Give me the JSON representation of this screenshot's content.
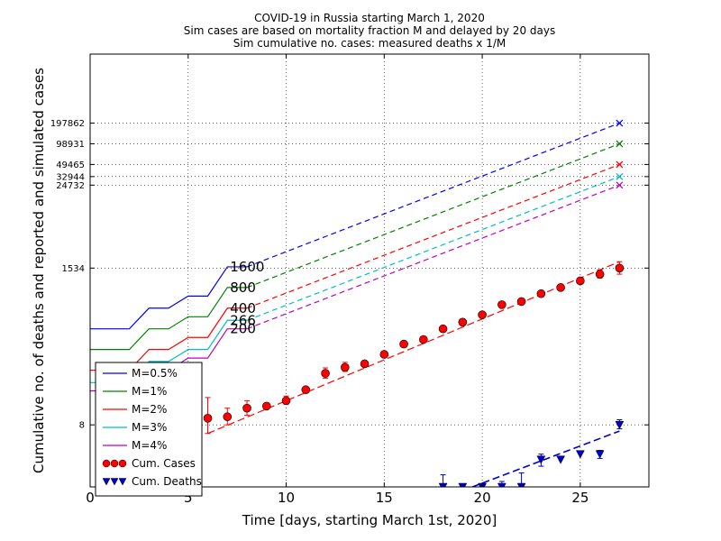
{
  "chart_data": {
    "type": "line",
    "title": [
      "COVID-19 in Russia starting March 1, 2020",
      "Sim cases are based on mortality fraction M and delayed by 20 days",
      "Sim cumulative no. cases: measured deaths x 1/M"
    ],
    "xlabel": "Time [days, starting March 1st, 2020]",
    "ylabel": "Cumulative no. of deaths and reported and simulated cases",
    "xlim": [
      0,
      28.5
    ],
    "x_ticks": [
      0,
      5,
      10,
      15,
      20,
      25
    ],
    "x_tick_labels": [
      "0",
      "5",
      "10",
      "15",
      "20",
      "25"
    ],
    "y_scale": "log",
    "ylim": [
      1,
      2000000
    ],
    "y_ticks": [
      8,
      1534,
      24732,
      32944,
      49465,
      98931,
      197862
    ],
    "y_tick_labels": [
      "8",
      "1534",
      "24732",
      "32944",
      "49465",
      "98931",
      "197862"
    ],
    "grid": true,
    "legend_position": "lower-left",
    "series": [
      {
        "name": "M=0.5%",
        "color": "#0000ff",
        "solid": {
          "x": [
            0,
            2,
            3,
            4,
            5,
            6,
            7,
            8
          ],
          "y": [
            200,
            200,
            400,
            400,
            600,
            600,
            1600,
            1600
          ]
        },
        "dashed": {
          "x": [
            8,
            27
          ],
          "y": [
            1600,
            197862
          ]
        },
        "end_x": 27,
        "end_y": 197862,
        "label": "1600",
        "label_x": 7,
        "label_y": 1600
      },
      {
        "name": "M=1%",
        "color": "#008000",
        "solid": {
          "x": [
            0,
            2,
            3,
            4,
            5,
            6,
            7,
            8
          ],
          "y": [
            100,
            100,
            200,
            200,
            300,
            300,
            800,
            800
          ]
        },
        "dashed": {
          "x": [
            8,
            27
          ],
          "y": [
            800,
            98931
          ]
        },
        "end_x": 27,
        "end_y": 98931,
        "label": "800",
        "label_x": 7,
        "label_y": 800
      },
      {
        "name": "M=2%",
        "color": "#ff0000",
        "solid": {
          "x": [
            0,
            2,
            3,
            4,
            5,
            6,
            7,
            8
          ],
          "y": [
            50,
            50,
            100,
            100,
            150,
            150,
            400,
            400
          ]
        },
        "dashed": {
          "x": [
            8,
            27
          ],
          "y": [
            400,
            49465
          ]
        },
        "end_x": 27,
        "end_y": 49465,
        "label": "400",
        "label_x": 7,
        "label_y": 400
      },
      {
        "name": "M=3%",
        "color": "#00bfbf",
        "solid": {
          "x": [
            0,
            2,
            3,
            4,
            5,
            6,
            7,
            8
          ],
          "y": [
            33,
            33,
            67,
            67,
            100,
            100,
            266,
            266
          ]
        },
        "dashed": {
          "x": [
            8,
            27
          ],
          "y": [
            266,
            32944
          ]
        },
        "end_x": 27,
        "end_y": 32944,
        "label": "266",
        "label_x": 7,
        "label_y": 266
      },
      {
        "name": "M=4%",
        "color": "#bf00bf",
        "solid": {
          "x": [
            0,
            2,
            3,
            4,
            5,
            6,
            7,
            8
          ],
          "y": [
            25,
            25,
            50,
            50,
            75,
            75,
            200,
            200
          ]
        },
        "dashed": {
          "x": [
            8,
            27
          ],
          "y": [
            200,
            24732
          ]
        },
        "end_x": 27,
        "end_y": 24732,
        "label": "200",
        "label_x": 7,
        "label_y": 200
      }
    ],
    "cases": {
      "name": "Cum. Cases",
      "color": "#ff0000",
      "points": [
        {
          "x": 6,
          "y": 10,
          "err": [
            6,
            20
          ]
        },
        {
          "x": 7,
          "y": 10.5,
          "err": [
            8,
            14
          ]
        },
        {
          "x": 8,
          "y": 14,
          "err": [
            11,
            18
          ]
        },
        {
          "x": 9,
          "y": 15
        },
        {
          "x": 10,
          "y": 18,
          "err": [
            16,
            21
          ]
        },
        {
          "x": 11,
          "y": 26
        },
        {
          "x": 12,
          "y": 45,
          "err": [
            38,
            54
          ]
        },
        {
          "x": 13,
          "y": 55,
          "err": [
            48,
            65
          ]
        },
        {
          "x": 14,
          "y": 62
        },
        {
          "x": 15,
          "y": 85
        },
        {
          "x": 16,
          "y": 120
        },
        {
          "x": 17,
          "y": 140
        },
        {
          "x": 18,
          "y": 200
        },
        {
          "x": 19,
          "y": 250
        },
        {
          "x": 20,
          "y": 320
        },
        {
          "x": 21,
          "y": 450
        },
        {
          "x": 22,
          "y": 500
        },
        {
          "x": 23,
          "y": 650
        },
        {
          "x": 24,
          "y": 800
        },
        {
          "x": 25,
          "y": 1000
        },
        {
          "x": 26,
          "y": 1250,
          "err": [
            1100,
            1450
          ]
        },
        {
          "x": 27,
          "y": 1534,
          "err": [
            1250,
            1900
          ]
        }
      ],
      "fit": {
        "x": [
          6,
          27
        ],
        "y": [
          6,
          1900
        ]
      }
    },
    "deaths": {
      "name": "Cum. Deaths",
      "color": "#0000cc",
      "points": [
        {
          "x": 18,
          "y": 1,
          "err": [
            1,
            1.5
          ]
        },
        {
          "x": 19,
          "y": 1
        },
        {
          "x": 20,
          "y": 1,
          "err": [
            1,
            1.1
          ]
        },
        {
          "x": 21,
          "y": 1,
          "err": [
            1,
            1.2
          ]
        },
        {
          "x": 22,
          "y": 1,
          "err": [
            1,
            1.6
          ]
        },
        {
          "x": 23,
          "y": 2.5,
          "err": [
            2,
            3
          ]
        },
        {
          "x": 24,
          "y": 2.5
        },
        {
          "x": 25,
          "y": 3
        },
        {
          "x": 26,
          "y": 3,
          "err": [
            2.6,
            3.4
          ]
        },
        {
          "x": 27,
          "y": 8,
          "err": [
            7,
            9.5
          ]
        }
      ],
      "fit": {
        "x": [
          19.5,
          27
        ],
        "y": [
          1,
          6.5
        ]
      }
    }
  }
}
